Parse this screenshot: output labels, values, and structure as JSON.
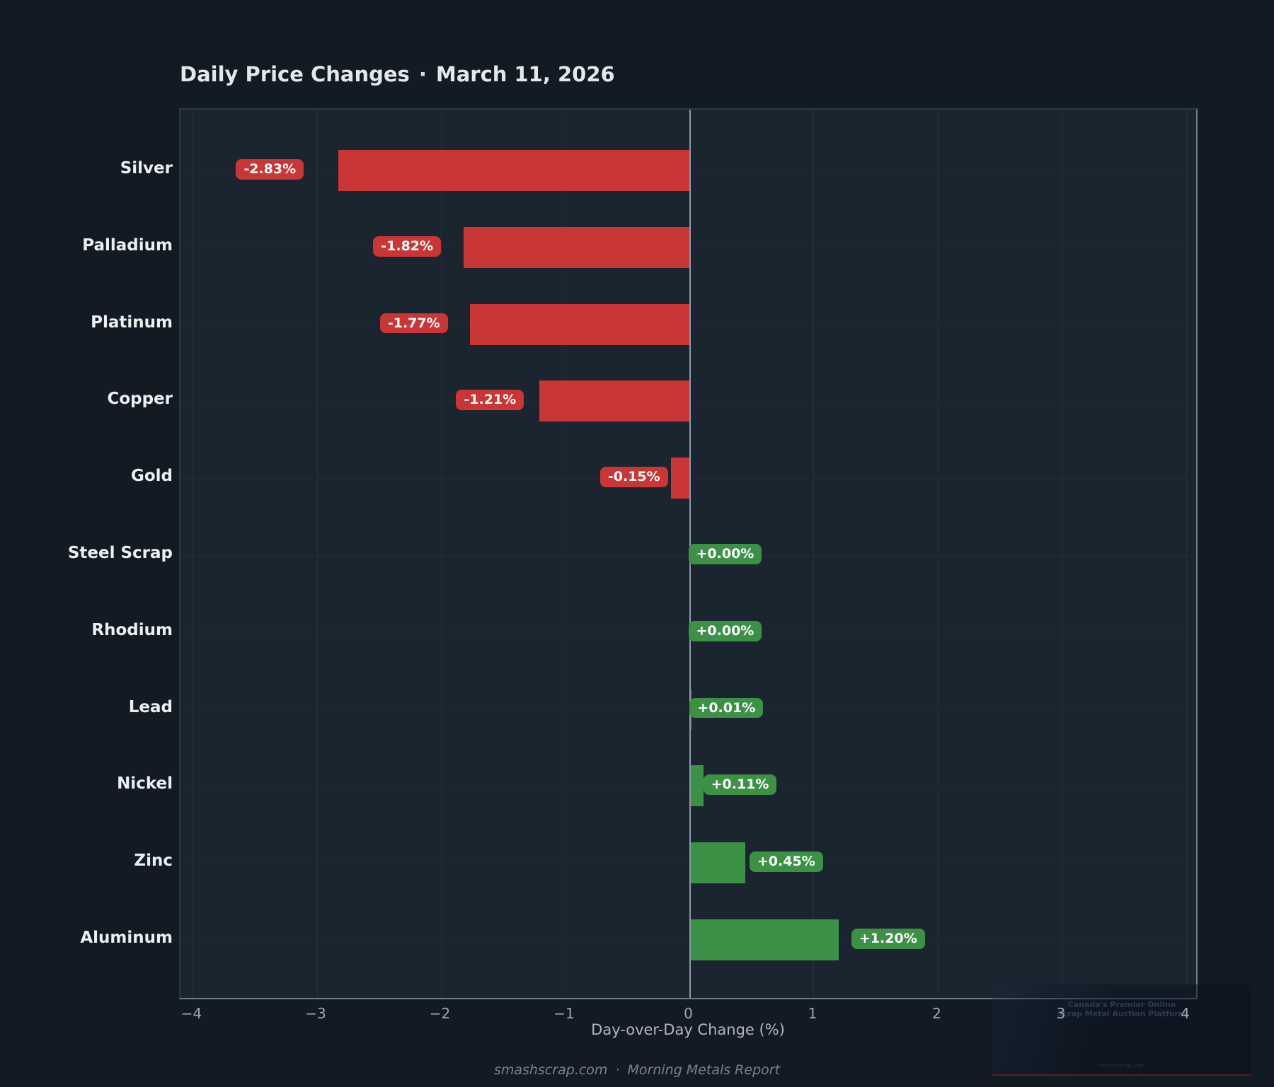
{
  "title": {
    "text": "Daily Price Changes",
    "separator": "·",
    "date": "March 11, 2026"
  },
  "chart_data": {
    "type": "bar",
    "orientation": "horizontal",
    "title": "Daily Price Changes · March 11, 2026",
    "categories": [
      "Silver",
      "Palladium",
      "Platinum",
      "Copper",
      "Gold",
      "Steel Scrap",
      "Rhodium",
      "Lead",
      "Nickel",
      "Zinc",
      "Aluminum"
    ],
    "values": [
      -2.83,
      -1.82,
      -1.77,
      -1.21,
      -0.15,
      0.0,
      0.0,
      0.01,
      0.11,
      0.45,
      1.2
    ],
    "value_labels": [
      "-2.83%",
      "-1.82%",
      "-1.77%",
      "-1.21%",
      "-0.15%",
      "+0.00%",
      "+0.00%",
      "+0.01%",
      "+0.11%",
      "+0.45%",
      "+1.20%"
    ],
    "xlabel": "Day-over-Day Change (%)",
    "xlim": [
      -4.1,
      4.1
    ],
    "xticks": [
      -4,
      -3,
      -2,
      -1,
      0,
      1,
      2,
      3,
      4
    ],
    "xtick_labels": [
      "−4",
      "−3",
      "−2",
      "−1",
      "0",
      "1",
      "2",
      "3",
      "4"
    ],
    "grid": true,
    "legend": "none",
    "negative_color": "#ca3535",
    "positive_color": "#3c9146",
    "zero_line_color": "#8d99a6",
    "plot_background": "#1b2530",
    "figure_background": "#121a24"
  },
  "footer": {
    "site": "smashscrap.com",
    "separator": "·",
    "report": "Morning Metals Report"
  },
  "watermark": {
    "line1": "Canada's Premier Online",
    "line2": "Scrap Metal Auction Platform",
    "site": "smashscrap.com"
  }
}
